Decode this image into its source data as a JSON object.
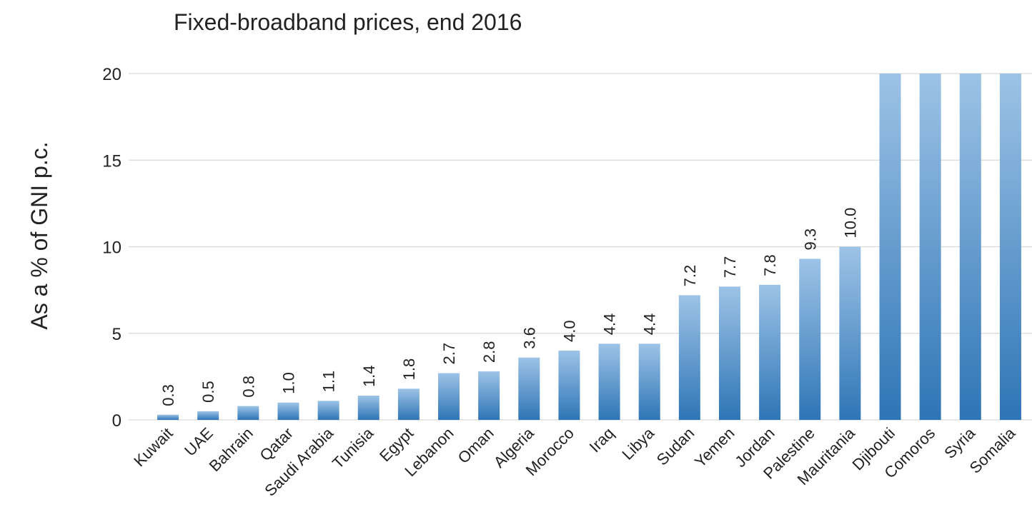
{
  "chart_data": {
    "type": "bar",
    "title": "Fixed-broadband prices, end 2016",
    "y_label": "As a % of GNI p.c.",
    "categories": [
      "Kuwait",
      "UAE",
      "Bahrain",
      "Qatar",
      "Saudi Arabia",
      "Tunisia",
      "Egypt",
      "Lebanon",
      "Oman",
      "Algeria",
      "Morocco",
      "Iraq",
      "Libya",
      "Sudan",
      "Yemen",
      "Jordan",
      "Palestine",
      "Mauritania",
      "Djibouti",
      "Comoros",
      "Syria",
      "Somalia"
    ],
    "values": [
      0.3,
      0.5,
      0.8,
      1.0,
      1.1,
      1.4,
      1.8,
      2.7,
      2.8,
      3.6,
      4.0,
      4.4,
      4.4,
      7.2,
      7.7,
      7.8,
      9.3,
      10.0,
      20,
      20,
      20,
      20
    ],
    "value_labels": [
      "0.3",
      "0.5",
      "0.8",
      "1.0",
      "1.1",
      "1.4",
      "1.8",
      "2.7",
      "2.8",
      "3.6",
      "4.0",
      "4.4",
      "4.4",
      "7.2",
      "7.7",
      "7.8",
      "9.3",
      "10.0",
      null,
      null,
      null,
      null
    ],
    "color": "#2e75b6",
    "color_top": "#9dc3e6",
    "ylim": [
      0,
      20
    ],
    "yticks": [
      0,
      5,
      10,
      15,
      20
    ],
    "grid": true
  }
}
